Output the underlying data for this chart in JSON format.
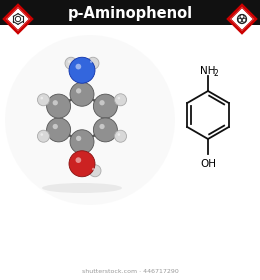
{
  "title": "p-Aminophenol",
  "title_bg": "#111111",
  "title_color": "#ffffff",
  "title_fontsize": 10.5,
  "bg_color": "#ffffff",
  "watermark": "shutterstock.com · 446717290",
  "mol3d": {
    "carbon_color": "#909090",
    "carbon_dark": "#555555",
    "nitrogen_color": "#3366dd",
    "nitrogen_dark": "#1133aa",
    "oxygen_color": "#cc2222",
    "oxygen_dark": "#881111",
    "hydrogen_color": "#d8d8d8",
    "hydrogen_dark": "#aaaaaa"
  },
  "ring2d": {
    "line_color": "#111111",
    "line_width": 1.3,
    "font_size": 7.5
  },
  "hazard_color": "#cc0000",
  "hazard_fill": "#ffffff",
  "hazard_line_inner": "#cc0000"
}
